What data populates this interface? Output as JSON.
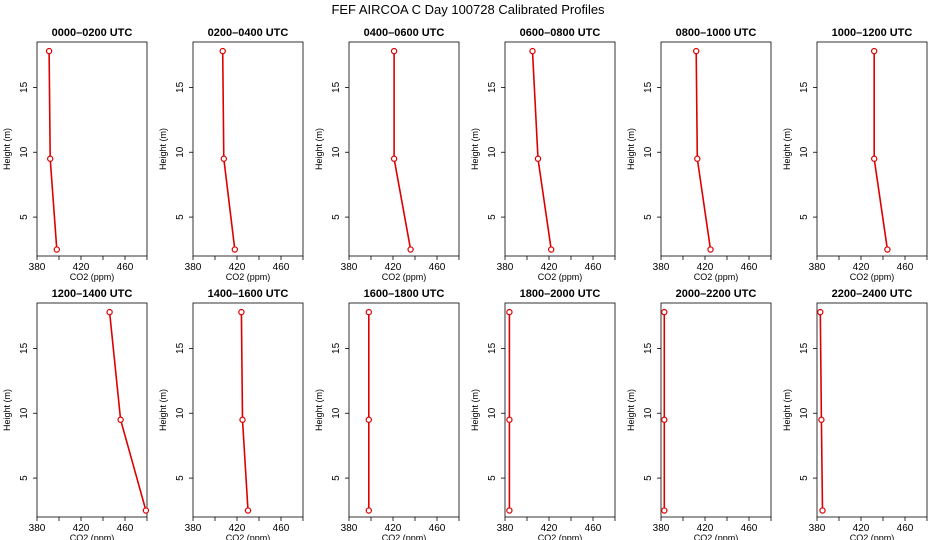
{
  "title": "FEF AIRCOA C  Day 100728  Calibrated Profiles",
  "colors": {
    "series": "#dd0000",
    "axis": "#000000"
  },
  "chart_data": {
    "type": "line",
    "title": "FEF AIRCOA C  Day 100728  Calibrated Profiles",
    "xlabel": "CO2 (ppm)",
    "ylabel": "Height (m)",
    "xlim": [
      380,
      480
    ],
    "ylim": [
      2,
      18.5
    ],
    "xticks": [
      380,
      420,
      460
    ],
    "xticks_minor": [
      400,
      440,
      480
    ],
    "yticks": [
      5,
      10,
      15
    ],
    "grid": false,
    "legend": "none",
    "heights": [
      17.8,
      9.5,
      2.5
    ],
    "panels": [
      {
        "title": "0000–0200 UTC",
        "co2": [
          391,
          392,
          398
        ]
      },
      {
        "title": "0200–0400 UTC",
        "co2": [
          407,
          408,
          418
        ]
      },
      {
        "title": "0400–0600 UTC",
        "co2": [
          421,
          421,
          436
        ]
      },
      {
        "title": "0600–0800 UTC",
        "co2": [
          405,
          410,
          422
        ]
      },
      {
        "title": "0800–1000 UTC",
        "co2": [
          412,
          413,
          425
        ]
      },
      {
        "title": "1000–1200 UTC",
        "co2": [
          432,
          432,
          444
        ]
      },
      {
        "title": "1200–1400 UTC",
        "co2": [
          446,
          456,
          479
        ]
      },
      {
        "title": "1400–1600 UTC",
        "co2": [
          424,
          425,
          430
        ]
      },
      {
        "title": "1600–1800 UTC",
        "co2": [
          398,
          398,
          398
        ]
      },
      {
        "title": "1800–2000 UTC",
        "co2": [
          384,
          384,
          384
        ]
      },
      {
        "title": "2000–2200 UTC",
        "co2": [
          383,
          383,
          383
        ]
      },
      {
        "title": "2200–2400 UTC",
        "co2": [
          383,
          384,
          385
        ]
      }
    ]
  }
}
